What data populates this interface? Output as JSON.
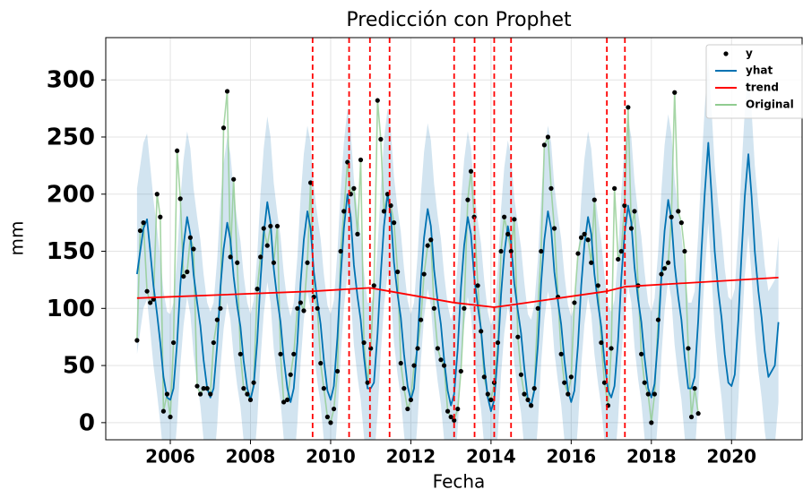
{
  "chart_data": {
    "type": "forecast",
    "title": "Predicción con Prophet",
    "x_label": "Fecha",
    "y_label": "mm",
    "xlim": [
      2004.39,
      2021.76
    ],
    "ylim": [
      -15,
      337
    ],
    "xticks": [
      2006,
      2008,
      2010,
      2012,
      2014,
      2016,
      2018,
      2020
    ],
    "yticks": [
      0,
      50,
      100,
      150,
      200,
      250,
      300
    ],
    "grid": true,
    "legend": "upper right",
    "x": [
      2005.17,
      2005.25,
      2005.33,
      2005.42,
      2005.5,
      2005.58,
      2005.67,
      2005.75,
      2005.83,
      2005.92,
      2006,
      2006.08,
      2006.17,
      2006.25,
      2006.33,
      2006.42,
      2006.5,
      2006.58,
      2006.67,
      2006.75,
      2006.83,
      2006.92,
      2007,
      2007.08,
      2007.17,
      2007.25,
      2007.33,
      2007.42,
      2007.5,
      2007.58,
      2007.67,
      2007.75,
      2007.83,
      2007.92,
      2008,
      2008.08,
      2008.17,
      2008.25,
      2008.33,
      2008.42,
      2008.5,
      2008.58,
      2008.67,
      2008.75,
      2008.83,
      2008.92,
      2009,
      2009.08,
      2009.17,
      2009.25,
      2009.33,
      2009.42,
      2009.5,
      2009.58,
      2009.67,
      2009.75,
      2009.83,
      2009.92,
      2010,
      2010.08,
      2010.17,
      2010.25,
      2010.33,
      2010.42,
      2010.5,
      2010.58,
      2010.67,
      2010.75,
      2010.83,
      2010.92,
      2011,
      2011.08,
      2011.17,
      2011.25,
      2011.33,
      2011.42,
      2011.5,
      2011.58,
      2011.67,
      2011.75,
      2011.83,
      2011.92,
      2012,
      2012.08,
      2012.17,
      2012.25,
      2012.33,
      2012.42,
      2012.5,
      2012.58,
      2012.67,
      2012.75,
      2012.83,
      2012.92,
      2013,
      2013.08,
      2013.17,
      2013.25,
      2013.33,
      2013.42,
      2013.5,
      2013.58,
      2013.67,
      2013.75,
      2013.83,
      2013.92,
      2014,
      2014.08,
      2014.17,
      2014.25,
      2014.33,
      2014.42,
      2014.5,
      2014.58,
      2014.67,
      2014.75,
      2014.83,
      2014.92,
      2015,
      2015.08,
      2015.17,
      2015.25,
      2015.33,
      2015.42,
      2015.5,
      2015.58,
      2015.67,
      2015.75,
      2015.83,
      2015.92,
      2016,
      2016.08,
      2016.17,
      2016.25,
      2016.33,
      2016.42,
      2016.5,
      2016.58,
      2016.67,
      2016.75,
      2016.83,
      2016.92,
      2017,
      2017.08,
      2017.17,
      2017.25,
      2017.33,
      2017.42,
      2017.5,
      2017.58,
      2017.67,
      2017.75,
      2017.83,
      2017.92,
      2018,
      2018.08,
      2018.17,
      2018.25,
      2018.33,
      2018.42,
      2018.5,
      2018.58,
      2018.67,
      2018.75,
      2018.83,
      2018.92,
      2019,
      2019.08,
      2019.17,
      2019.25,
      2019.33,
      2019.42,
      2019.5,
      2019.58,
      2019.67,
      2019.75,
      2019.83,
      2019.92,
      2020,
      2020.08,
      2020.17,
      2020.25,
      2020.33,
      2020.42,
      2020.5,
      2020.58,
      2020.67,
      2020.75,
      2020.83,
      2020.92,
      2021,
      2021.08,
      2021.17
    ],
    "interval": {
      "color": "#1f77b4",
      "opacity": 0.2,
      "lower": [
        60,
        80,
        100,
        108,
        80,
        50,
        25,
        0,
        -30,
        -48,
        -50,
        -40,
        0,
        50,
        85,
        110,
        95,
        60,
        35,
        15,
        -15,
        -40,
        -48,
        -40,
        -2,
        48,
        82,
        105,
        90,
        58,
        32,
        14,
        -16,
        -40,
        -50,
        -38,
        2,
        55,
        95,
        123,
        105,
        65,
        38,
        18,
        -14,
        -40,
        -52,
        -40,
        0,
        52,
        90,
        115,
        100,
        62,
        36,
        16,
        -15,
        -42,
        -50,
        -38,
        5,
        58,
        100,
        130,
        110,
        68,
        40,
        20,
        -12,
        -40,
        -40,
        -35,
        8,
        60,
        102,
        130,
        112,
        70,
        42,
        22,
        -10,
        -38,
        -50,
        -40,
        2,
        54,
        92,
        117,
        102,
        64,
        36,
        16,
        -15,
        -42,
        -55,
        -45,
        -5,
        48,
        85,
        110,
        95,
        58,
        32,
        12,
        -20,
        -48,
        -60,
        -50,
        -10,
        42,
        78,
        102,
        88,
        52,
        28,
        8,
        -22,
        -50,
        -55,
        -42,
        -2,
        52,
        90,
        115,
        100,
        62,
        36,
        16,
        -15,
        -42,
        -52,
        -42,
        -2,
        50,
        86,
        110,
        95,
        60,
        34,
        14,
        -16,
        -42,
        -48,
        -38,
        2,
        56,
        95,
        120,
        105,
        66,
        38,
        18,
        -13,
        -40,
        -48,
        -36,
        5,
        58,
        98,
        125,
        108,
        68,
        40,
        20,
        -12,
        -40,
        -40,
        -30,
        20,
        80,
        130,
        175,
        130,
        80,
        45,
        22,
        -10,
        -35,
        -38,
        -28,
        20,
        78,
        128,
        165,
        128,
        80,
        45,
        22,
        -8,
        -30,
        -25,
        -20,
        18
      ],
      "upper": [
        205,
        225,
        245,
        253,
        225,
        195,
        170,
        145,
        115,
        97,
        95,
        105,
        145,
        195,
        230,
        255,
        240,
        205,
        180,
        160,
        130,
        105,
        97,
        105,
        143,
        193,
        227,
        250,
        235,
        203,
        177,
        159,
        129,
        105,
        95,
        107,
        147,
        200,
        240,
        268,
        250,
        210,
        183,
        163,
        131,
        105,
        93,
        105,
        145,
        197,
        235,
        260,
        245,
        207,
        181,
        161,
        130,
        103,
        95,
        107,
        150,
        203,
        245,
        275,
        255,
        213,
        185,
        165,
        133,
        105,
        105,
        110,
        153,
        205,
        247,
        275,
        257,
        215,
        187,
        167,
        135,
        107,
        95,
        105,
        147,
        199,
        237,
        262,
        247,
        209,
        181,
        161,
        130,
        103,
        90,
        100,
        140,
        193,
        230,
        255,
        240,
        203,
        177,
        157,
        125,
        97,
        85,
        95,
        135,
        187,
        223,
        247,
        233,
        197,
        173,
        153,
        123,
        95,
        90,
        103,
        143,
        197,
        235,
        260,
        245,
        207,
        181,
        161,
        130,
        103,
        93,
        103,
        143,
        195,
        231,
        255,
        240,
        205,
        179,
        159,
        129,
        103,
        97,
        107,
        147,
        201,
        240,
        265,
        250,
        211,
        183,
        163,
        132,
        105,
        97,
        109,
        150,
        203,
        243,
        270,
        253,
        213,
        185,
        165,
        133,
        105,
        105,
        115,
        165,
        225,
        275,
        320,
        275,
        225,
        190,
        167,
        135,
        110,
        107,
        117,
        165,
        223,
        273,
        310,
        273,
        225,
        190,
        167,
        137,
        115,
        120,
        125,
        163
      ]
    },
    "series": [
      {
        "name": "y",
        "type": "scatter",
        "color": "#000000",
        "values": [
          72,
          168,
          175,
          115,
          105,
          108,
          200,
          180,
          10,
          25,
          5,
          70,
          238,
          196,
          128,
          132,
          162,
          152,
          32,
          25,
          30,
          30,
          25,
          70,
          90,
          100,
          258,
          290,
          145,
          213,
          140,
          60,
          30,
          25,
          20,
          35,
          117,
          145,
          170,
          155,
          172,
          140,
          172,
          60,
          18,
          20,
          42,
          60,
          100,
          105,
          98,
          140,
          210,
          110,
          100,
          52,
          30,
          5,
          0,
          12,
          45,
          150,
          185,
          228,
          200,
          205,
          165,
          230,
          70,
          35,
          65,
          120,
          282,
          248,
          185,
          200,
          190,
          175,
          132,
          52,
          30,
          12,
          20,
          50,
          65,
          90,
          130,
          155,
          160,
          100,
          65,
          55,
          50,
          10,
          5,
          2,
          12,
          45,
          100,
          195,
          220,
          180,
          120,
          80,
          40,
          25,
          20,
          35,
          70,
          150,
          180,
          165,
          150,
          178,
          75,
          42,
          25,
          20,
          15,
          30,
          100,
          150,
          243,
          250,
          205,
          170,
          110,
          60,
          35,
          25,
          40,
          105,
          148,
          162,
          165,
          160,
          140,
          195,
          120,
          70,
          35,
          15,
          65,
          205,
          143,
          150,
          190,
          276,
          170,
          185,
          120,
          60,
          35,
          25,
          0,
          25,
          90,
          130,
          135,
          140,
          180,
          289,
          185,
          175,
          150,
          65,
          5,
          30,
          8,
          null,
          null,
          null,
          null,
          null,
          null,
          null,
          null,
          null,
          null,
          null,
          null,
          null,
          null,
          null,
          null,
          null,
          null,
          null,
          null,
          null,
          null,
          null,
          null
        ]
      },
      {
        "name": "yhat",
        "type": "line",
        "color": "#0072b2",
        "values": [
          130,
          150,
          170,
          178,
          150,
          120,
          95,
          70,
          40,
          22,
          20,
          30,
          70,
          120,
          155,
          180,
          165,
          130,
          105,
          85,
          55,
          30,
          22,
          30,
          68,
          118,
          152,
          175,
          160,
          128,
          102,
          84,
          54,
          30,
          20,
          32,
          72,
          125,
          165,
          193,
          175,
          135,
          108,
          88,
          56,
          30,
          18,
          30,
          70,
          122,
          160,
          185,
          170,
          132,
          106,
          86,
          55,
          28,
          20,
          32,
          75,
          128,
          170,
          200,
          180,
          138,
          110,
          90,
          58,
          30,
          30,
          35,
          78,
          130,
          172,
          200,
          182,
          140,
          112,
          92,
          60,
          32,
          20,
          30,
          72,
          124,
          162,
          187,
          172,
          134,
          106,
          86,
          55,
          28,
          15,
          25,
          65,
          118,
          155,
          180,
          165,
          128,
          102,
          82,
          50,
          22,
          10,
          20,
          60,
          112,
          148,
          172,
          158,
          122,
          98,
          78,
          48,
          20,
          15,
          28,
          68,
          122,
          160,
          185,
          170,
          132,
          106,
          86,
          55,
          28,
          18,
          28,
          68,
          120,
          156,
          180,
          165,
          130,
          104,
          84,
          54,
          28,
          22,
          32,
          72,
          126,
          165,
          190,
          175,
          136,
          108,
          88,
          57,
          30,
          22,
          34,
          75,
          128,
          168,
          195,
          178,
          138,
          110,
          90,
          58,
          30,
          30,
          40,
          90,
          150,
          200,
          245,
          200,
          150,
          115,
          92,
          60,
          35,
          32,
          42,
          90,
          148,
          198,
          235,
          198,
          150,
          115,
          92,
          62,
          40,
          45,
          50,
          88
        ]
      },
      {
        "name": "trend",
        "type": "line",
        "color": "#ff0000",
        "x": [
          2005.17,
          2009.55,
          2010.98,
          2011.47,
          2013.08,
          2014.08,
          2014.5,
          2016.89,
          2017.34,
          2021.17
        ],
        "values": [
          109,
          115,
          118,
          115,
          105,
          101,
          103,
          115,
          119,
          127
        ]
      },
      {
        "name": "Original",
        "type": "line",
        "color": "#90cc90",
        "values": [
          72,
          168,
          175,
          115,
          105,
          108,
          200,
          180,
          10,
          25,
          5,
          70,
          238,
          196,
          128,
          132,
          162,
          152,
          32,
          25,
          30,
          30,
          25,
          70,
          90,
          100,
          258,
          290,
          145,
          213,
          140,
          60,
          30,
          25,
          20,
          35,
          117,
          145,
          170,
          155,
          172,
          140,
          172,
          60,
          18,
          20,
          42,
          60,
          100,
          105,
          98,
          140,
          210,
          110,
          100,
          52,
          30,
          5,
          0,
          12,
          45,
          150,
          185,
          228,
          200,
          205,
          165,
          230,
          70,
          35,
          65,
          120,
          282,
          248,
          185,
          200,
          190,
          175,
          132,
          52,
          30,
          12,
          20,
          50,
          65,
          90,
          130,
          155,
          160,
          100,
          65,
          55,
          50,
          10,
          5,
          2,
          12,
          45,
          100,
          195,
          220,
          180,
          120,
          80,
          40,
          25,
          20,
          35,
          70,
          150,
          180,
          165,
          150,
          178,
          75,
          42,
          25,
          20,
          15,
          30,
          100,
          150,
          243,
          250,
          205,
          170,
          110,
          60,
          35,
          25,
          40,
          105,
          148,
          162,
          165,
          160,
          140,
          195,
          120,
          70,
          35,
          15,
          65,
          205,
          143,
          150,
          190,
          276,
          170,
          185,
          120,
          60,
          35,
          25,
          0,
          25,
          90,
          130,
          135,
          140,
          180,
          289,
          185,
          175,
          150,
          65,
          5,
          30,
          8,
          null,
          null,
          null,
          null,
          null,
          null,
          null,
          null,
          null,
          null,
          null,
          null,
          null,
          null,
          null,
          null,
          null,
          null,
          null,
          null,
          null,
          null,
          null,
          null
        ]
      }
    ],
    "changepoints": [
      2009.55,
      2010.46,
      2010.98,
      2011.47,
      2013.08,
      2013.59,
      2014.08,
      2014.5,
      2016.89,
      2017.34
    ],
    "changepoint_color": "#ff0000"
  }
}
